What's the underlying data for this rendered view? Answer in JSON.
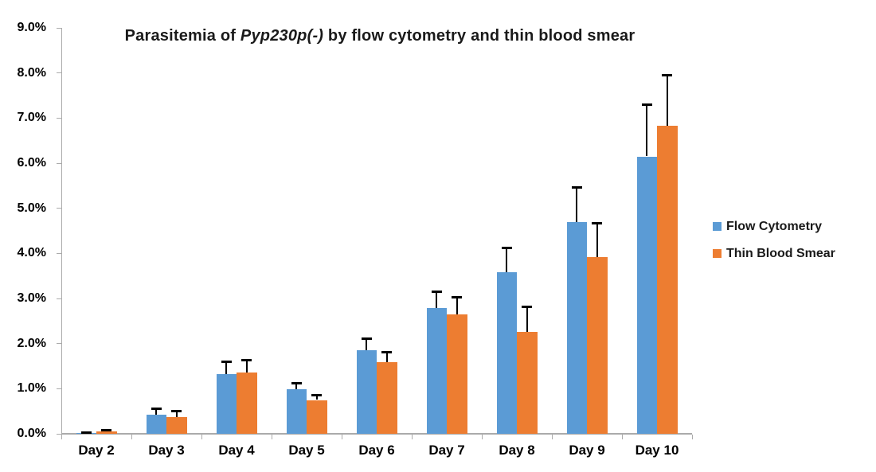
{
  "chart": {
    "title": {
      "prefix": "Parasitemia of ",
      "italic": "Pyp230p(-)",
      "suffix": " by flow cytometry and thin blood smear"
    }
  },
  "chart_data": {
    "type": "bar",
    "title": "Parasitemia of Pyp230p(-) by flow cytometry and thin blood smear",
    "categories": [
      "Day 2",
      "Day 3",
      "Day 4",
      "Day 5",
      "Day 6",
      "Day 7",
      "Day 8",
      "Day 9",
      "Day 10"
    ],
    "series": [
      {
        "name": "Flow Cytometry",
        "color": "#5B9BD5",
        "values": [
          0.02,
          0.42,
          1.33,
          0.98,
          1.85,
          2.78,
          3.58,
          4.7,
          6.15
        ],
        "errors_plus": [
          0.02,
          0.15,
          0.28,
          0.15,
          0.26,
          0.38,
          0.55,
          0.77,
          1.16
        ]
      },
      {
        "name": "Thin Blood Smear",
        "color": "#ED7D31",
        "values": [
          0.05,
          0.37,
          1.36,
          0.75,
          1.58,
          2.65,
          2.26,
          3.91,
          6.83
        ],
        "errors_plus": [
          0.03,
          0.14,
          0.28,
          0.12,
          0.24,
          0.39,
          0.57,
          0.77,
          1.13
        ]
      }
    ],
    "xlabel": "",
    "ylabel": "",
    "ylim": [
      0,
      9
    ],
    "ytick_step": 1.0,
    "ytick_labels": [
      "0.0%",
      "1.0%",
      "2.0%",
      "3.0%",
      "4.0%",
      "5.0%",
      "6.0%",
      "7.0%",
      "8.0%",
      "9.0%"
    ],
    "grid": false,
    "legend_position": "right",
    "error_bars": "plus_only_with_caps",
    "error_bar_color": "#000000",
    "axis_color": "#ababab",
    "background_color": "#ffffff"
  }
}
